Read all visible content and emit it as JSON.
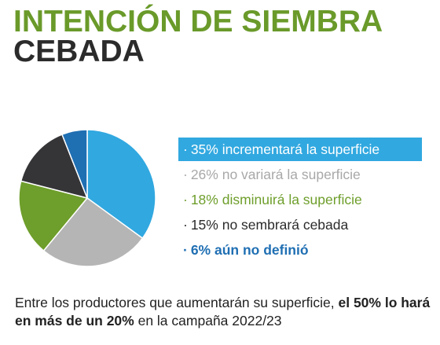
{
  "header": {
    "title_line1": "INTENCIÓN DE SIEMBRA",
    "title_line2": "CEBADA"
  },
  "colors": {
    "title_green": "#6a9a2a",
    "title_dark": "#2b2b2b"
  },
  "chart_data": {
    "type": "pie",
    "start": "top, clockwise",
    "slices": [
      {
        "percent": 35,
        "color": "#31a8e0",
        "legend_text": "35% incrementará la superficie",
        "legend_color": "#ffffff",
        "highlight_bg": "#31a8e0",
        "bold": false
      },
      {
        "percent": 26,
        "color": "#b5b5b5",
        "legend_text": "26% no variará la superficie",
        "legend_color": "#a8a8a8",
        "bold": false
      },
      {
        "percent": 18,
        "color": "#6e9e2b",
        "legend_text": "18% disminuirá la superficie",
        "legend_color": "#6e9e2b",
        "bold": false
      },
      {
        "percent": 15,
        "color": "#353538",
        "legend_text": "15%  no sembrará cebada",
        "legend_color": "#2b2b2b",
        "bold": false
      },
      {
        "percent": 6,
        "color": "#1f6fb3",
        "legend_text": "6%   aún no definió",
        "legend_color": "#1f6fb3",
        "bold": true
      }
    ]
  },
  "footer": {
    "part1": "Entre los productores que aumentarán su superficie, ",
    "bold1": "el 50% lo hará en más de un 20%",
    "part2": " en la campaña 2022/23"
  }
}
